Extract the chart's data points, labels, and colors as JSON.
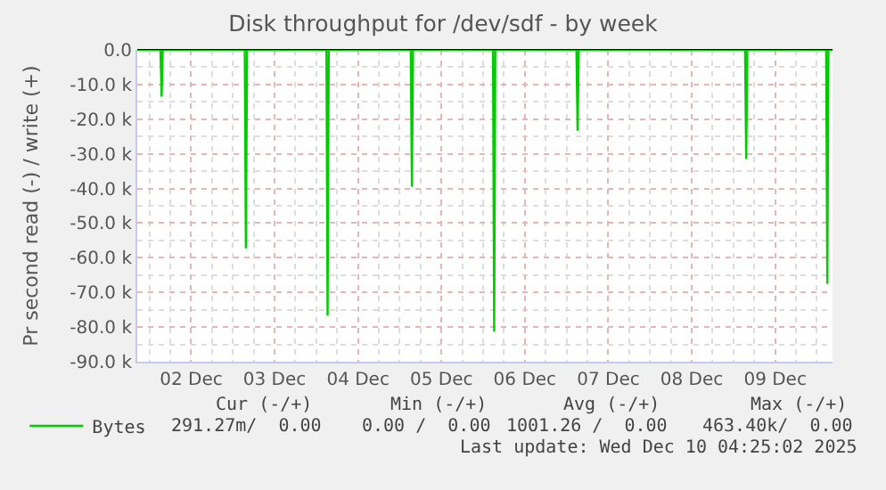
{
  "chart_data": {
    "type": "line",
    "title": "Disk throughput for /dev/sdf - by week",
    "ylabel": "Pr second read (-) / write (+)",
    "x": [
      "2025-12-01T20:30",
      "2025-12-02T03:10",
      "2025-12-02T03:30",
      "2025-12-02T03:50",
      "2025-12-03T03:25",
      "2025-12-03T03:45",
      "2025-12-03T04:05",
      "2025-12-04T02:55",
      "2025-12-04T03:15",
      "2025-12-04T03:35",
      "2025-12-05T03:10",
      "2025-12-05T03:30",
      "2025-12-05T03:50",
      "2025-12-06T02:50",
      "2025-12-06T03:10",
      "2025-12-06T03:30",
      "2025-12-07T02:50",
      "2025-12-07T03:10",
      "2025-12-07T03:30",
      "2025-12-09T03:20",
      "2025-12-09T03:40",
      "2025-12-09T04:00",
      "2025-12-10T02:40",
      "2025-12-10T03:00",
      "2025-12-10T03:20",
      "2025-12-10T04:25"
    ],
    "series": [
      {
        "name": "Bytes",
        "color": "#00cc00",
        "values": [
          0,
          0,
          -13500,
          0,
          0,
          -57300,
          0,
          0,
          -76700,
          0,
          0,
          -39500,
          0,
          0,
          -81300,
          0,
          0,
          -23300,
          0,
          0,
          -31500,
          0,
          0,
          -67500,
          0,
          0
        ]
      }
    ],
    "xlim": [
      "2025-12-01T20:30",
      "2025-12-10T04:30"
    ],
    "xticks": [
      {
        "value": "2025-12-02T12:00",
        "label": "02 Dec"
      },
      {
        "value": "2025-12-03T12:00",
        "label": "03 Dec"
      },
      {
        "value": "2025-12-04T12:00",
        "label": "04 Dec"
      },
      {
        "value": "2025-12-05T12:00",
        "label": "05 Dec"
      },
      {
        "value": "2025-12-06T12:00",
        "label": "06 Dec"
      },
      {
        "value": "2025-12-07T12:00",
        "label": "07 Dec"
      },
      {
        "value": "2025-12-08T12:00",
        "label": "08 Dec"
      },
      {
        "value": "2025-12-09T12:00",
        "label": "09 Dec"
      }
    ],
    "ylim": [
      -90000,
      0
    ],
    "yticks": [
      {
        "value": 0,
        "label": "0.0"
      },
      {
        "value": -10000,
        "label": "-10.0 k"
      },
      {
        "value": -20000,
        "label": "-20.0 k"
      },
      {
        "value": -30000,
        "label": "-30.0 k"
      },
      {
        "value": -40000,
        "label": "-40.0 k"
      },
      {
        "value": -50000,
        "label": "-50.0 k"
      },
      {
        "value": -60000,
        "label": "-60.0 k"
      },
      {
        "value": -70000,
        "label": "-70.0 k"
      },
      {
        "value": -80000,
        "label": "-80.0 k"
      },
      {
        "value": -90000,
        "label": "-90.0 k"
      }
    ],
    "grid": true,
    "legend": "bottom left",
    "marker": "none",
    "line_style": "solid",
    "annotations": [
      "Cur (-/+)",
      "Min (-/+)",
      "Avg (-/+)",
      "Max (-/+)",
      "291.27m/  0.00",
      "0.00 /  0.00",
      "1001.26 /  0.00",
      "463.40k/  0.00",
      "Last update: Wed Dec 10 04:25:02 2025"
    ]
  }
}
